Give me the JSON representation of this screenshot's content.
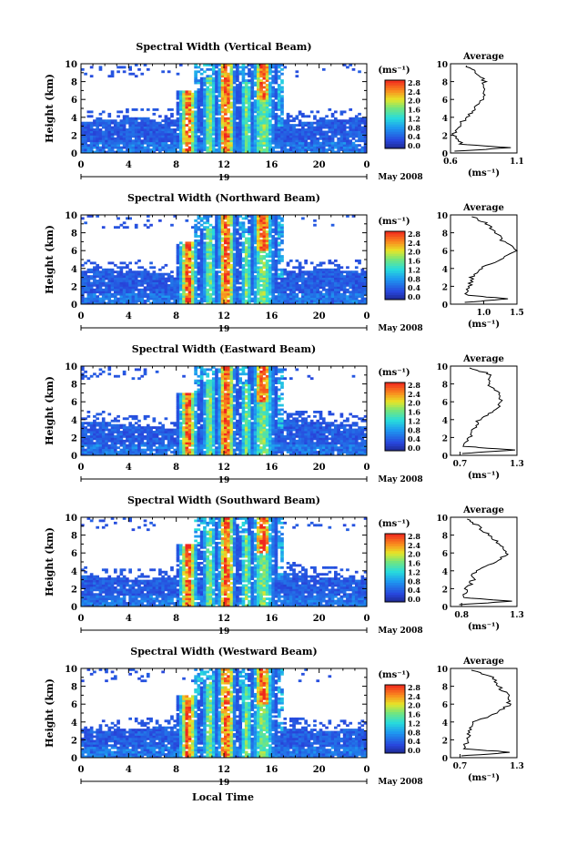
{
  "figure": {
    "xlabel": "Local Time",
    "colorbar_unit": "(ms⁻¹)",
    "colorbar_ticks": [
      "2.8",
      "2.4",
      "2.0",
      "1.6",
      "1.2",
      "0.8",
      "0.4",
      "0.0"
    ],
    "date_day": "19",
    "date_label": "May 2008",
    "avg_title": "Average",
    "avg_unit": "(ms⁻¹)"
  },
  "chart_data": [
    {
      "type": "heatmap",
      "title": "Spectral Width (Vertical Beam)",
      "ylabel": "Height (km)",
      "xlim": [
        0,
        24
      ],
      "ylim": [
        0,
        10
      ],
      "xticks": [
        "0",
        "4",
        "8",
        "12",
        "16",
        "20",
        "0"
      ],
      "yticks": [
        "0",
        "2",
        "4",
        "6",
        "8",
        "10"
      ],
      "value_unit": "ms^-1",
      "colorbar_range": [
        0.0,
        2.8
      ],
      "profile": {
        "xlim": [
          0.6,
          1.1
        ],
        "xticks": [
          "0.6",
          "1.1"
        ],
        "height": [
          0.2,
          0.6,
          1.0,
          2.0,
          3.0,
          4.0,
          5.0,
          6.0,
          7.0,
          8.0,
          9.0,
          9.8
        ],
        "value": [
          0.65,
          1.05,
          0.68,
          0.62,
          0.66,
          0.72,
          0.78,
          0.84,
          0.85,
          0.86,
          0.8,
          0.72
        ]
      }
    },
    {
      "type": "heatmap",
      "title": "Spectral Width (Northward Beam)",
      "ylabel": "Height (km)",
      "xlim": [
        0,
        24
      ],
      "ylim": [
        0,
        10
      ],
      "xticks": [
        "0",
        "4",
        "8",
        "12",
        "16",
        "20",
        "0"
      ],
      "yticks": [
        "0",
        "2",
        "4",
        "6",
        "8",
        "10"
      ],
      "value_unit": "ms^-1",
      "colorbar_range": [
        0.0,
        2.8
      ],
      "profile": {
        "xlim": [
          0.5,
          1.5
        ],
        "xticks": [
          "1.0",
          "1.5"
        ],
        "height": [
          0.2,
          0.6,
          1.0,
          2.0,
          3.0,
          4.0,
          5.0,
          6.0,
          7.0,
          8.0,
          9.0,
          9.8
        ],
        "value": [
          0.7,
          1.4,
          0.75,
          0.78,
          0.82,
          0.95,
          1.25,
          1.5,
          1.3,
          1.2,
          1.05,
          0.82
        ]
      }
    },
    {
      "type": "heatmap",
      "title": "Spectral Width (Eastward Beam)",
      "ylabel": "Height (km)",
      "xlim": [
        0,
        24
      ],
      "ylim": [
        0,
        10
      ],
      "xticks": [
        "0",
        "4",
        "8",
        "12",
        "16",
        "20",
        "0"
      ],
      "yticks": [
        "0",
        "2",
        "4",
        "6",
        "8",
        "10"
      ],
      "value_unit": "ms^-1",
      "colorbar_range": [
        0.0,
        2.8
      ],
      "profile": {
        "xlim": [
          0.6,
          1.3
        ],
        "xticks": [
          "0.7",
          "1.3"
        ],
        "height": [
          0.2,
          0.6,
          1.0,
          2.0,
          3.0,
          4.0,
          5.0,
          6.0,
          7.0,
          8.0,
          9.0,
          9.8
        ],
        "value": [
          0.72,
          1.28,
          0.75,
          0.8,
          0.85,
          0.9,
          1.05,
          1.15,
          1.1,
          1.0,
          1.05,
          0.8
        ]
      }
    },
    {
      "type": "heatmap",
      "title": "Spectral Width (Southward Beam)",
      "ylabel": "Height (km)",
      "xlim": [
        0,
        24
      ],
      "ylim": [
        0,
        10
      ],
      "xticks": [
        "0",
        "4",
        "8",
        "12",
        "16",
        "20",
        "0"
      ],
      "yticks": [
        "0",
        "2",
        "4",
        "6",
        "8",
        "10"
      ],
      "value_unit": "ms^-1",
      "colorbar_range": [
        0.0,
        2.8
      ],
      "profile": {
        "xlim": [
          0.7,
          1.3
        ],
        "xticks": [
          "0.8",
          "1.3"
        ],
        "height": [
          0.2,
          0.6,
          1.0,
          2.0,
          3.0,
          4.0,
          5.0,
          6.0,
          7.0,
          8.0,
          9.0,
          9.8
        ],
        "value": [
          0.78,
          1.25,
          0.82,
          0.85,
          0.9,
          0.92,
          1.1,
          1.22,
          1.15,
          1.05,
          0.95,
          0.85
        ]
      }
    },
    {
      "type": "heatmap",
      "title": "Spectral Width (Westward Beam)",
      "ylabel": "Height (km)",
      "xlim": [
        0,
        24
      ],
      "ylim": [
        0,
        10
      ],
      "xticks": [
        "0",
        "4",
        "8",
        "12",
        "16",
        "20",
        "0"
      ],
      "yticks": [
        "0",
        "2",
        "4",
        "6",
        "8",
        "10"
      ],
      "value_unit": "ms^-1",
      "colorbar_range": [
        0.0,
        2.8
      ],
      "profile": {
        "xlim": [
          0.6,
          1.3
        ],
        "xticks": [
          "0.7",
          "1.3"
        ],
        "height": [
          0.2,
          0.6,
          1.0,
          2.0,
          3.0,
          4.0,
          5.0,
          6.0,
          7.0,
          8.0,
          9.0,
          9.8
        ],
        "value": [
          0.72,
          1.25,
          0.75,
          0.78,
          0.8,
          0.85,
          1.1,
          1.22,
          1.2,
          1.1,
          1.05,
          0.82
        ]
      }
    }
  ]
}
